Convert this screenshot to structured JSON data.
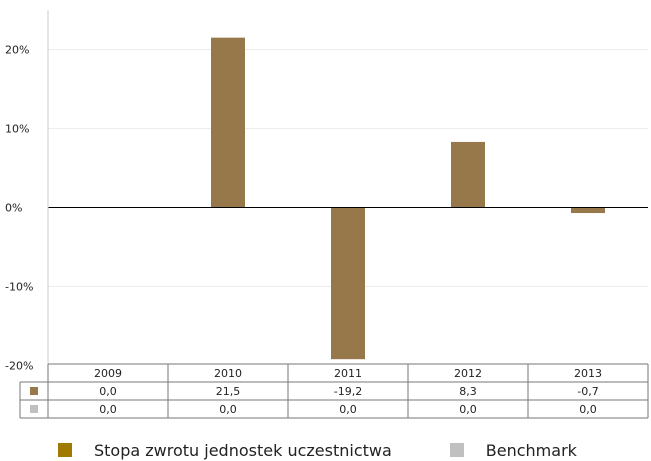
{
  "chart_data": {
    "type": "bar",
    "categories": [
      "2009",
      "2010",
      "2011",
      "2012",
      "2013"
    ],
    "series": [
      {
        "name": "Stopa zwrotu jednostek uczestnictwa",
        "values": [
          0.0,
          21.5,
          -19.2,
          8.3,
          -0.7
        ],
        "labels": [
          "0,0",
          "21,5",
          "-19,2",
          "8,3",
          "-0,7"
        ],
        "color": "#96784a",
        "swatch_color": "#a07a00"
      },
      {
        "name": "Benchmark",
        "values": [
          0.0,
          0.0,
          0.0,
          0.0,
          0.0
        ],
        "labels": [
          "0,0",
          "0,0",
          "0,0",
          "0,0",
          "0,0"
        ],
        "color": "#c0c0c0",
        "swatch_color": "#c0c0c0"
      }
    ],
    "yticks": [
      20,
      10,
      0,
      -10,
      -20
    ],
    "ytick_labels": [
      "20%",
      "10%",
      "0%",
      "-10%",
      "-20%"
    ],
    "ylim": [
      -20,
      22
    ],
    "grid": true,
    "legend_position": "bottom",
    "data_table": true
  }
}
